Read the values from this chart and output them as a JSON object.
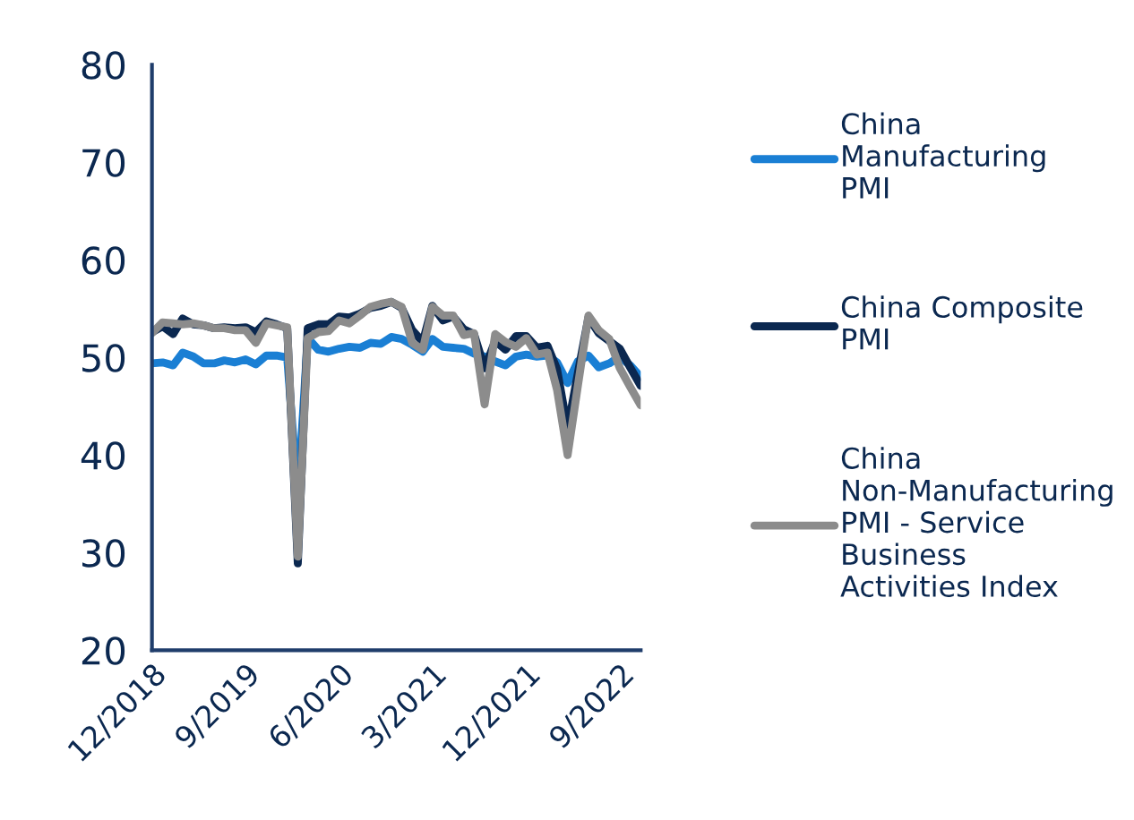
{
  "chart_data": {
    "type": "line",
    "x": [
      "2018-12",
      "2019-01",
      "2019-02",
      "2019-03",
      "2019-04",
      "2019-05",
      "2019-06",
      "2019-07",
      "2019-08",
      "2019-09",
      "2019-10",
      "2019-11",
      "2019-12",
      "2020-01",
      "2020-02",
      "2020-03",
      "2020-04",
      "2020-05",
      "2020-06",
      "2020-07",
      "2020-08",
      "2020-09",
      "2020-10",
      "2020-11",
      "2020-12",
      "2021-01",
      "2021-02",
      "2021-03",
      "2021-04",
      "2021-05",
      "2021-06",
      "2021-07",
      "2021-08",
      "2021-09",
      "2021-10",
      "2021-11",
      "2021-12",
      "2022-01",
      "2022-02",
      "2022-03",
      "2022-04",
      "2022-05",
      "2022-06",
      "2022-07",
      "2022-08",
      "2022-09",
      "2022-10",
      "2022-11"
    ],
    "series": [
      {
        "name": "China Manufacturing PMI",
        "color": "#1a7fd4",
        "values": [
          49.4,
          49.5,
          49.2,
          50.5,
          50.1,
          49.4,
          49.4,
          49.7,
          49.5,
          49.8,
          49.3,
          50.2,
          50.2,
          50.0,
          35.7,
          52.0,
          50.8,
          50.6,
          50.9,
          51.1,
          51.0,
          51.5,
          51.4,
          52.1,
          51.9,
          51.3,
          50.6,
          51.9,
          51.1,
          51.0,
          50.9,
          50.4,
          50.1,
          49.6,
          49.2,
          50.1,
          50.3,
          50.1,
          50.2,
          49.5,
          47.4,
          49.6,
          50.2,
          49.0,
          49.4,
          50.1,
          49.2,
          48.0
        ]
      },
      {
        "name": "China Composite PMI",
        "color": "#0b2850",
        "values": [
          52.6,
          53.2,
          52.4,
          54.0,
          53.4,
          53.3,
          53.0,
          53.1,
          53.0,
          53.1,
          52.6,
          53.7,
          53.4,
          53.0,
          28.9,
          53.0,
          53.4,
          53.4,
          54.2,
          54.1,
          54.5,
          55.1,
          55.3,
          55.7,
          55.1,
          52.8,
          51.6,
          55.3,
          53.8,
          54.2,
          52.9,
          52.4,
          48.9,
          51.7,
          50.8,
          52.2,
          52.2,
          51.0,
          51.2,
          48.8,
          42.7,
          48.4,
          54.1,
          52.5,
          51.7,
          50.9,
          49.0,
          47.1
        ]
      },
      {
        "name": "China Non-Manufacturing PMI - Service Business Activities Index",
        "color": "#8c8c8c",
        "values": [
          52.5,
          53.6,
          53.5,
          53.4,
          53.5,
          53.3,
          53.0,
          53.0,
          52.8,
          52.8,
          51.5,
          53.5,
          53.3,
          53.1,
          29.6,
          52.0,
          52.6,
          52.7,
          53.8,
          53.5,
          54.3,
          55.2,
          55.5,
          55.7,
          55.2,
          51.5,
          50.8,
          55.2,
          54.3,
          54.3,
          52.3,
          52.5,
          45.2,
          52.4,
          51.6,
          51.1,
          52.0,
          50.3,
          50.5,
          46.7,
          40.0,
          47.1,
          54.3,
          52.8,
          51.9,
          48.9,
          47.0,
          45.1
        ]
      }
    ],
    "xlim": [
      "2018-12",
      "2022-11"
    ],
    "xticks": [
      {
        "value": "2018-12",
        "label": "12/2018"
      },
      {
        "value": "2019-09",
        "label": "9/2019"
      },
      {
        "value": "2020-06",
        "label": "6/2020"
      },
      {
        "value": "2021-03",
        "label": "3/2021"
      },
      {
        "value": "2021-12",
        "label": "12/2021"
      },
      {
        "value": "2022-09",
        "label": "9/2022"
      }
    ],
    "ylim": [
      20,
      80
    ],
    "yticks": [
      20,
      30,
      40,
      50,
      60,
      70,
      80
    ],
    "grid": false,
    "legend": "right",
    "marker": "none",
    "line_style": "solid"
  }
}
